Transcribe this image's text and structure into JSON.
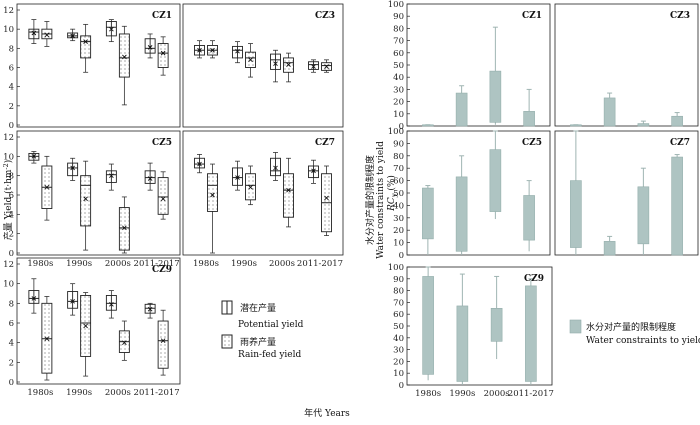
{
  "chart_data": [
    {
      "type": "box",
      "ylabel_cn": "产量",
      "ylabel_en": "Yield (t·hm",
      "ylabel_sup": "-2",
      "ylabel_close": ")",
      "xlabel": "年代 Years",
      "categories": [
        "1980s",
        "1990s",
        "2000s",
        "2011-2017"
      ],
      "ylim": [
        0,
        12
      ],
      "yticks": [
        0,
        2,
        4,
        6,
        8,
        10,
        12
      ],
      "legend": {
        "potential_cn": "潜在产量",
        "potential_en": "Potential yield",
        "rainfed_cn": "雨养产量",
        "rainfed_en": "Rain-fed yield"
      },
      "series_names": [
        "potential",
        "rainfed"
      ],
      "panels": [
        {
          "name": "CZ1",
          "potential": [
            {
              "min": 8.5,
              "q1": 9.0,
              "median": 9.7,
              "mean": 9.6,
              "q3": 10.0,
              "max": 11.0
            },
            {
              "min": 8.8,
              "q1": 9.1,
              "median": 9.3,
              "mean": 9.3,
              "q3": 9.6,
              "max": 10.0
            },
            {
              "min": 8.7,
              "q1": 9.3,
              "median": 10.2,
              "mean": 10.0,
              "q3": 10.8,
              "max": 11.0
            },
            {
              "min": 7.0,
              "q1": 7.5,
              "median": 8.0,
              "mean": 8.1,
              "q3": 9.0,
              "max": 9.5
            }
          ],
          "rainfed": [
            {
              "min": 8.2,
              "q1": 9.0,
              "median": 9.5,
              "mean": 9.4,
              "q3": 10.0,
              "max": 10.8
            },
            {
              "min": 5.5,
              "q1": 7.0,
              "median": 8.7,
              "mean": 8.7,
              "q3": 9.3,
              "max": 10.5
            },
            {
              "min": 2.1,
              "q1": 5.0,
              "median": 7.0,
              "mean": 7.1,
              "q3": 9.5,
              "max": 10.3
            },
            {
              "min": 5.2,
              "q1": 6.0,
              "median": 7.5,
              "mean": 7.5,
              "q3": 8.5,
              "max": 9.2
            }
          ]
        },
        {
          "name": "CZ3",
          "potential": [
            {
              "min": 7.0,
              "q1": 7.3,
              "median": 7.8,
              "mean": 7.8,
              "q3": 8.3,
              "max": 8.8
            },
            {
              "min": 6.5,
              "q1": 7.0,
              "median": 7.8,
              "mean": 7.7,
              "q3": 8.2,
              "max": 8.7
            },
            {
              "min": 4.5,
              "q1": 5.8,
              "median": 6.8,
              "mean": 6.4,
              "q3": 7.4,
              "max": 7.8
            },
            {
              "min": 5.5,
              "q1": 5.8,
              "median": 6.3,
              "mean": 6.1,
              "q3": 6.6,
              "max": 6.8
            }
          ],
          "rainfed": [
            {
              "min": 7.0,
              "q1": 7.3,
              "median": 7.8,
              "mean": 7.8,
              "q3": 8.3,
              "max": 8.8
            },
            {
              "min": 5.0,
              "q1": 6.0,
              "median": 7.0,
              "mean": 6.8,
              "q3": 7.6,
              "max": 8.5
            },
            {
              "min": 4.5,
              "q1": 5.5,
              "median": 6.5,
              "mean": 6.3,
              "q3": 7.0,
              "max": 7.5
            },
            {
              "min": 5.5,
              "q1": 5.7,
              "median": 6.2,
              "mean": 6.1,
              "q3": 6.5,
              "max": 6.8
            }
          ]
        },
        {
          "name": "CZ5",
          "potential": [
            {
              "min": 9.3,
              "q1": 9.6,
              "median": 10.0,
              "mean": 10.0,
              "q3": 10.3,
              "max": 10.5
            },
            {
              "min": 7.5,
              "q1": 8.0,
              "median": 8.8,
              "mean": 8.8,
              "q3": 9.3,
              "max": 9.8
            },
            {
              "min": 6.5,
              "q1": 7.3,
              "median": 8.1,
              "mean": 8.0,
              "q3": 8.5,
              "max": 9.2
            },
            {
              "min": 6.5,
              "q1": 7.2,
              "median": 7.8,
              "mean": 7.7,
              "q3": 8.5,
              "max": 9.3
            }
          ],
          "rainfed": [
            {
              "min": 3.4,
              "q1": 4.6,
              "median": 6.8,
              "mean": 6.8,
              "q3": 9.0,
              "max": 10.0
            },
            {
              "min": 0.3,
              "q1": 2.8,
              "median": 7.0,
              "mean": 5.6,
              "q3": 8.0,
              "max": 9.5
            },
            {
              "min": 0.0,
              "q1": 0.3,
              "median": 2.6,
              "mean": 2.6,
              "q3": 4.7,
              "max": 5.8
            },
            {
              "min": 3.5,
              "q1": 4.0,
              "median": 5.8,
              "mean": 5.6,
              "q3": 7.8,
              "max": 8.4
            }
          ]
        },
        {
          "name": "CZ7",
          "potential": [
            {
              "min": 8.3,
              "q1": 8.8,
              "median": 9.2,
              "mean": 9.2,
              "q3": 9.8,
              "max": 10.2
            },
            {
              "min": 6.5,
              "q1": 7.0,
              "median": 7.8,
              "mean": 7.8,
              "q3": 8.8,
              "max": 9.5
            },
            {
              "min": 7.5,
              "q1": 8.0,
              "median": 8.5,
              "mean": 8.8,
              "q3": 9.8,
              "max": 10.4
            },
            {
              "min": 7.2,
              "q1": 7.8,
              "median": 8.5,
              "mean": 8.5,
              "q3": 9.0,
              "max": 9.6
            }
          ],
          "rainfed": [
            {
              "min": 0.0,
              "q1": 4.3,
              "median": 7.0,
              "mean": 6.0,
              "q3": 8.2,
              "max": 9.2
            },
            {
              "min": 5.0,
              "q1": 5.5,
              "median": 7.0,
              "mean": 6.8,
              "q3": 8.2,
              "max": 9.0
            },
            {
              "min": 2.7,
              "q1": 3.7,
              "median": 6.5,
              "mean": 6.5,
              "q3": 8.2,
              "max": 9.8
            },
            {
              "min": 1.8,
              "q1": 2.2,
              "median": 5.2,
              "mean": 5.7,
              "q3": 8.2,
              "max": 9.0
            }
          ]
        },
        {
          "name": "CZ9",
          "potential": [
            {
              "min": 7.0,
              "q1": 8.0,
              "median": 8.5,
              "mean": 8.5,
              "q3": 9.3,
              "max": 10.5
            },
            {
              "min": 6.8,
              "q1": 7.5,
              "median": 8.2,
              "mean": 8.2,
              "q3": 9.2,
              "max": 10.0
            },
            {
              "min": 6.5,
              "q1": 7.3,
              "median": 8.0,
              "mean": 7.9,
              "q3": 8.8,
              "max": 9.3
            },
            {
              "min": 6.5,
              "q1": 7.0,
              "median": 7.5,
              "mean": 7.4,
              "q3": 7.9,
              "max": 8.0
            }
          ],
          "rainfed": [
            {
              "min": 0.2,
              "q1": 0.9,
              "median": 4.4,
              "mean": 4.4,
              "q3": 8.0,
              "max": 8.7
            },
            {
              "min": 0.6,
              "q1": 2.6,
              "median": 6.0,
              "mean": 5.7,
              "q3": 8.8,
              "max": 9.1
            },
            {
              "min": 2.2,
              "q1": 3.0,
              "median": 4.1,
              "mean": 4.0,
              "q3": 5.2,
              "max": 6.2
            },
            {
              "min": 0.7,
              "q1": 1.4,
              "median": 4.2,
              "mean": 4.2,
              "q3": 6.2,
              "max": 7.3
            }
          ]
        }
      ]
    },
    {
      "type": "bar",
      "ylabel_cn": "水分对产量的限制程度",
      "ylabel_en": "Water constraints to yield",
      "ylabel_rc": "RC",
      "ylabel_rc_sub": "y",
      "ylabel_rc_unit": "(%)",
      "categories": [
        "1980s",
        "1990s",
        "2000s",
        "2011-2017"
      ],
      "ylim": [
        0,
        100
      ],
      "yticks": [
        0,
        10,
        20,
        30,
        40,
        50,
        60,
        70,
        80,
        90,
        100
      ],
      "legend": {
        "cn": "水分对产量的限制程度",
        "en": "Water constraints to yield"
      },
      "colors": {
        "bar": "#aec4c2",
        "edge": "#93aeab",
        "whisker": "#9fb4b2"
      },
      "panels": [
        {
          "name": "CZ1",
          "bars": [
            {
              "low": 0,
              "high": 1,
              "wlow": 0,
              "whigh": 1
            },
            {
              "low": 0,
              "high": 27,
              "wlow": 0,
              "whigh": 33
            },
            {
              "low": 3,
              "high": 45,
              "wlow": 1,
              "whigh": 81
            },
            {
              "low": 0,
              "high": 12,
              "wlow": 0,
              "whigh": 30
            }
          ]
        },
        {
          "name": "CZ3",
          "bars": [
            {
              "low": 0,
              "high": 1,
              "wlow": 0,
              "whigh": 1
            },
            {
              "low": 0,
              "high": 23,
              "wlow": 0,
              "whigh": 27
            },
            {
              "low": 0,
              "high": 2,
              "wlow": 0,
              "whigh": 4
            },
            {
              "low": 0,
              "high": 8,
              "wlow": 0,
              "whigh": 11
            }
          ]
        },
        {
          "name": "CZ5",
          "bars": [
            {
              "low": 13,
              "high": 54,
              "wlow": 0,
              "whigh": 56
            },
            {
              "low": 3,
              "high": 63,
              "wlow": 0,
              "whigh": 80
            },
            {
              "low": 35,
              "high": 85,
              "wlow": 29,
              "whigh": 100
            },
            {
              "low": 12,
              "high": 48,
              "wlow": 3,
              "whigh": 60
            }
          ]
        },
        {
          "name": "CZ7",
          "bars": [
            {
              "low": 6,
              "high": 60,
              "wlow": 0,
              "whigh": 100
            },
            {
              "low": 0,
              "high": 11,
              "wlow": 0,
              "whigh": 15
            },
            {
              "low": 9,
              "high": 55,
              "wlow": 0,
              "whigh": 70
            },
            {
              "low": 0,
              "high": 79,
              "wlow": 0,
              "whigh": 81
            }
          ]
        },
        {
          "name": "CZ9",
          "bars": [
            {
              "low": 9,
              "high": 92,
              "wlow": 4,
              "whigh": 100
            },
            {
              "low": 3,
              "high": 67,
              "wlow": 0,
              "whigh": 94
            },
            {
              "low": 37,
              "high": 65,
              "wlow": 22,
              "whigh": 92
            },
            {
              "low": 3,
              "high": 84,
              "wlow": 0,
              "whigh": 90
            }
          ]
        }
      ]
    }
  ]
}
